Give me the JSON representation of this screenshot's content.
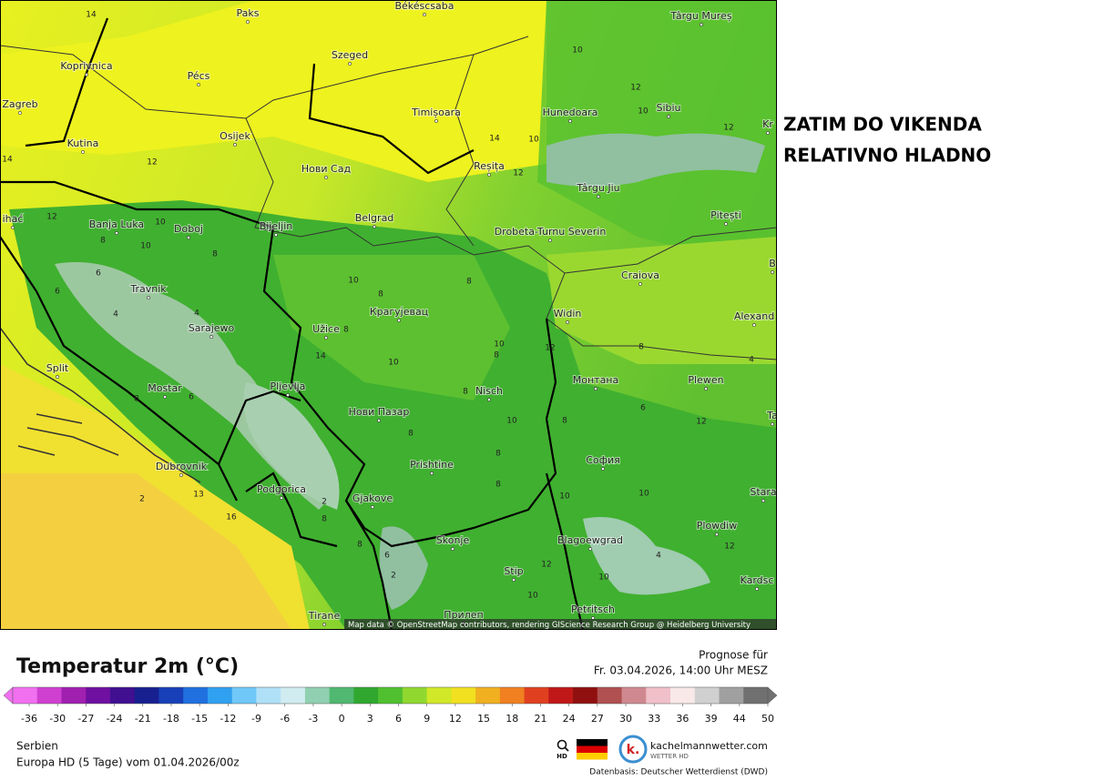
{
  "annotation": {
    "lines": [
      "ZATIM DO VIKENDA",
      "RELATIVNO HLADNO"
    ]
  },
  "map": {
    "cities": [
      "Paks",
      "Békéscsaba",
      "Târgu Mureș",
      "Koprivnica",
      "Pécs",
      "Szeged",
      "Zagreb",
      "Timișoara",
      "Hunedoara",
      "Sibiu",
      "Kr",
      "Osijek",
      "Kutina",
      "Нови Сад",
      "Reșița",
      "Târgu Jiu",
      "ihać",
      "Banja Luka",
      "Doboj",
      "Bijeljin",
      "Belgrad",
      "Drobeta-Turnu Severin",
      "Pitești",
      "Craiova",
      "B",
      "Travnik",
      "Sarajewo",
      "Užice",
      "Крагујевац",
      "Widin",
      "Alexand",
      "Split",
      "Mostar",
      "Pljevlja",
      "Nisch",
      "Монтана",
      "Plewen",
      "Нови Пазар",
      "Ta",
      "Dubrovnik",
      "Prishtine",
      "София",
      "Stara",
      "Podgorica",
      "Gjakove",
      "Plowdiw",
      "Skonje",
      "Blagoewgrad",
      "Stip",
      "Kardsc",
      "Tirane",
      "Прилеп",
      "Petritsch"
    ],
    "isotherm_labels": [
      14,
      10,
      12,
      10,
      12,
      14,
      10,
      12,
      14,
      12,
      12,
      10,
      10,
      8,
      8,
      6,
      6,
      4,
      4,
      8,
      10,
      8,
      8,
      10,
      12,
      14,
      8,
      10,
      8,
      8,
      6,
      4,
      8,
      8,
      6,
      2,
      8,
      8,
      10,
      8,
      10,
      12,
      12,
      16,
      13,
      2,
      8,
      8,
      6,
      10,
      12,
      4,
      2,
      10,
      10
    ],
    "attribution": "Map data © OpenStreetMap contributors, rendering GIScience Research Group @ Heidelberg University"
  },
  "legend": {
    "title": "Temperatur 2m (°C)",
    "ticks": [
      -36,
      -30,
      -27,
      -24,
      -21,
      -18,
      -15,
      -12,
      -9,
      -6,
      -3,
      0,
      3,
      6,
      9,
      12,
      15,
      18,
      21,
      24,
      27,
      30,
      33,
      36,
      39,
      44,
      50
    ],
    "colors": [
      "#f070f0",
      "#d040d0",
      "#a020b0",
      "#7010a0",
      "#401090",
      "#182090",
      "#1840b8",
      "#2070e0",
      "#30a0f0",
      "#70c8f8",
      "#b0e0f8",
      "#d0ecf0",
      "#90d0b0",
      "#50b870",
      "#30a830",
      "#50c030",
      "#90d830",
      "#d0e828",
      "#f0e020",
      "#f0b020",
      "#f08020",
      "#e04020",
      "#c01818",
      "#901010",
      "#b05050",
      "#d08890",
      "#f0c0c8",
      "#f8e8e8",
      "#d0d0d0",
      "#a0a0a0",
      "#707070"
    ]
  },
  "forecast": {
    "label": "Prognose für",
    "time": "Fr. 03.04.2026, 14:00 Uhr MESZ"
  },
  "footer": {
    "region": "Serbien",
    "model": "Europa HD (5 Tage) vom 01.04.2026/00z",
    "hd": "HD",
    "logo": "k.",
    "brand": "kachelmannwetter.com",
    "brand_sub": "WETTER HD",
    "source": "Datenbasis: Deutscher Wetterdienst (DWD)"
  }
}
